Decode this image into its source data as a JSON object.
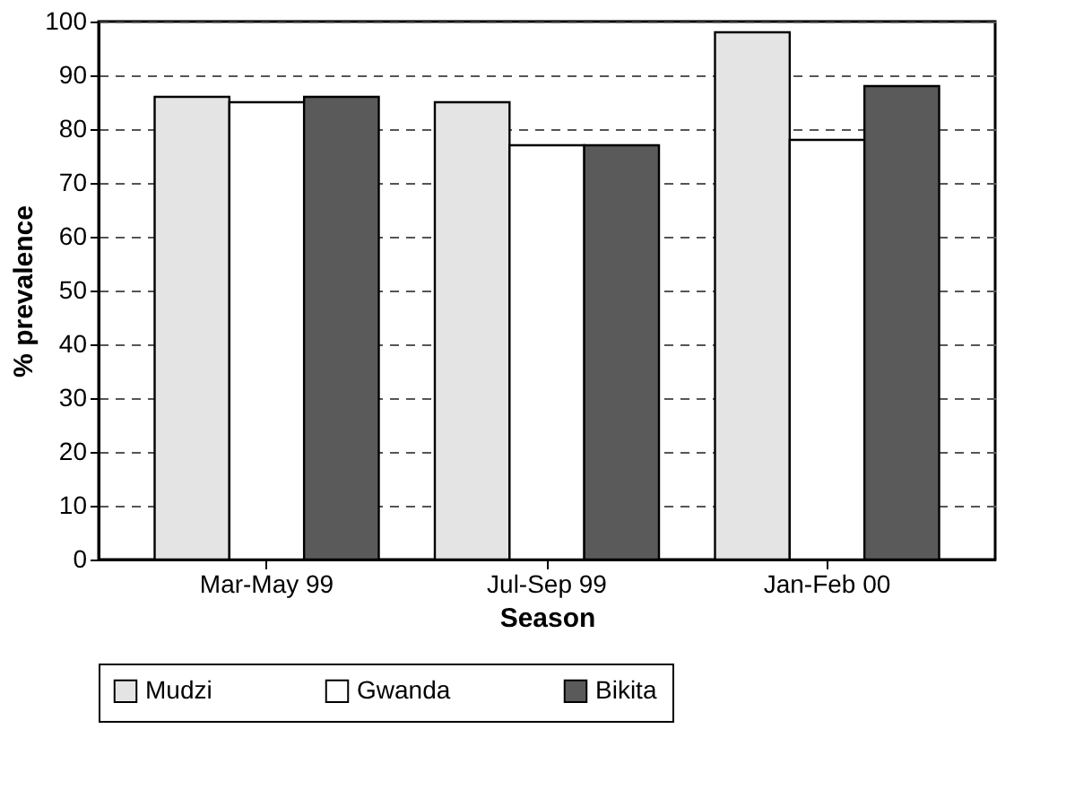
{
  "chart_data": {
    "type": "bar",
    "xlabel": "Season",
    "ylabel": "% prevalence",
    "categories": [
      "Mar-May 99",
      "Jul-Sep 99",
      "Jan-Feb 00"
    ],
    "series": [
      {
        "name": "Mudzi",
        "color": "#e4e4e4",
        "values": [
          86,
          85,
          98
        ]
      },
      {
        "name": "Gwanda",
        "color": "#ffffff",
        "values": [
          85,
          77,
          78
        ]
      },
      {
        "name": "Bikita",
        "color": "#5a5a5a",
        "values": [
          86,
          77,
          88
        ]
      }
    ],
    "ylim": [
      0,
      100
    ],
    "yticks": [
      0,
      10,
      20,
      30,
      40,
      50,
      60,
      70,
      80,
      90,
      100
    ],
    "grid": "y",
    "legend": "bottom"
  }
}
